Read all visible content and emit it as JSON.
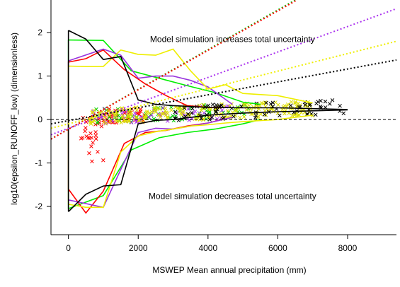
{
  "chart_data": {
    "type": "line",
    "title": "",
    "xlabel": "MSWEP Mean annual precipitation (mm)",
    "ylabel": "log10(epsilon_RUNOFF_low) (dimensionless)",
    "xlim": [
      -500,
      9400
    ],
    "ylim": [
      -2.65,
      2.75
    ],
    "xticks": [
      0,
      2000,
      4000,
      6000,
      8000
    ],
    "yticks": [
      -2,
      -1,
      0,
      1,
      2
    ],
    "grid": false,
    "annotations": [
      {
        "text": "Model simulation increases total uncertainty",
        "x": 4700,
        "y": 1.78
      },
      {
        "text": "Model simulation decreases total uncertainty",
        "x": 4700,
        "y": -1.83
      }
    ],
    "reference_line": {
      "y": 0,
      "style": "dashed",
      "color": "#000000"
    },
    "trend_lines": [
      {
        "color": "#00cc00",
        "x": [
          -500,
          6500
        ],
        "y": [
          -0.45,
          2.75
        ]
      },
      {
        "color": "#ff0000",
        "x": [
          -500,
          6550
        ],
        "y": [
          -0.45,
          2.75
        ]
      },
      {
        "color": "#aa33ee",
        "x": [
          -500,
          9400
        ],
        "y": [
          -0.35,
          2.55
        ]
      },
      {
        "color": "#eeee00",
        "x": [
          -500,
          9400
        ],
        "y": [
          -0.2,
          1.8
        ]
      },
      {
        "color": "#000000",
        "x": [
          -500,
          9400
        ],
        "y": [
          -0.1,
          1.37
        ]
      }
    ],
    "series": [
      {
        "color": "#00ee00",
        "x": [
          0,
          1000,
          1800,
          2600,
          3400,
          4200,
          5000,
          5500
        ],
        "upper": [
          1.83,
          1.82,
          1.12,
          0.95,
          0.78,
          0.62,
          0.4,
          0.35
        ],
        "lower": [
          -2.05,
          -1.75,
          -0.7,
          -0.42,
          -0.3,
          -0.22,
          -0.1,
          0.0
        ]
      },
      {
        "color": "#ff0000",
        "x": [
          0,
          500,
          1000,
          1600,
          2200,
          2800,
          3400,
          4000,
          4400
        ],
        "upper": [
          1.32,
          1.4,
          1.6,
          1.15,
          0.82,
          0.55,
          0.32,
          0.28,
          0.28
        ],
        "lower": [
          -1.6,
          -2.15,
          -1.65,
          -0.55,
          -0.3,
          -0.25,
          -0.15,
          -0.08,
          0.0
        ]
      },
      {
        "color": "#9933dd",
        "x": [
          0,
          1000,
          1500,
          2000,
          2500,
          3000,
          3500,
          4000,
          4700
        ],
        "upper": [
          1.35,
          1.62,
          1.48,
          0.95,
          1.0,
          1.0,
          0.9,
          0.75,
          0.35
        ],
        "lower": [
          -1.85,
          -2.02,
          -1.15,
          -0.3,
          -0.2,
          -0.22,
          -0.15,
          -0.08,
          0.05
        ]
      },
      {
        "color": "#eeee00",
        "x": [
          0,
          500,
          1000,
          1500,
          2000,
          2500,
          3000,
          3500,
          4000,
          4500,
          5000,
          6000,
          7000
        ],
        "upper": [
          1.23,
          1.22,
          1.22,
          1.6,
          1.5,
          1.48,
          1.62,
          1.12,
          0.7,
          0.8,
          0.6,
          0.55,
          0.38
        ],
        "lower": [
          -1.95,
          -2.02,
          -2.02,
          -0.75,
          -0.38,
          -0.28,
          -0.22,
          -0.15,
          -0.12,
          -0.08,
          -0.05,
          0.0,
          0.1
        ]
      },
      {
        "color": "#000000",
        "x": [
          0,
          500,
          1000,
          1500,
          2000,
          2500,
          3000,
          4000,
          5000,
          6000,
          7000,
          8000
        ],
        "upper": [
          2.05,
          1.85,
          1.38,
          1.45,
          0.45,
          0.35,
          0.32,
          0.28,
          0.27,
          0.27,
          0.25,
          0.23
        ],
        "lower": [
          -2.12,
          -1.72,
          -1.53,
          -1.5,
          -0.1,
          -0.02,
          0.0,
          0.1,
          0.15,
          0.18,
          0.2,
          0.22
        ]
      }
    ]
  }
}
